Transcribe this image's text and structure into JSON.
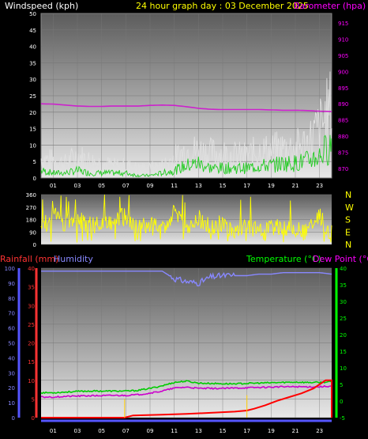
{
  "header": {
    "windspeed_label": "Windspeed (kph)",
    "title": "24 hour graph day : 03 December 2025",
    "barometer_label": "Barometer (hpa)"
  },
  "footer": {
    "rainfall_label": "Rainfall (mm)",
    "humidity_label": "Humidity",
    "temperature_label": "Temperature (°C)",
    "dewpoint_label": "Dew Point (°C)"
  },
  "colors": {
    "windspeed": "#ffffff",
    "gust": "#e0e0e0",
    "avg_wind": "#22cc22",
    "barometer": "#cc22cc",
    "direction": "#ffff00",
    "rainfall": "#ff0000",
    "humidity": "#8888ff",
    "temperature": "#00cc00",
    "dewpoint": "#cc00cc",
    "axis_blue": "#5555ff",
    "axis_green": "#00ff00",
    "header_yellow": "#ffff00",
    "header_magenta": "#ff00ff"
  },
  "chart_data": [
    {
      "type": "line",
      "name": "wind-barometer",
      "x_ticks": [
        "01",
        "03",
        "05",
        "07",
        "09",
        "11",
        "13",
        "15",
        "17",
        "19",
        "21",
        "23"
      ],
      "y_left_ticks": [
        "0",
        "5",
        "10",
        "15",
        "20",
        "25",
        "30",
        "35",
        "40",
        "45",
        "50"
      ],
      "y_left_lim": [
        0,
        50
      ],
      "y_right_ticks": [
        "870",
        "875",
        "880",
        "885",
        "890",
        "895",
        "900",
        "905",
        "910",
        "915"
      ],
      "y_right_lim": [
        867,
        918
      ],
      "series": [
        {
          "key": "wind",
          "x": [
            0,
            1,
            2,
            3,
            4,
            5,
            6,
            7,
            8,
            9,
            10,
            11,
            12,
            13,
            14,
            15,
            16,
            17,
            18,
            19,
            20,
            21,
            22,
            23,
            24
          ],
          "y": [
            3,
            2,
            2,
            3,
            2,
            2,
            2,
            2,
            1,
            1,
            2,
            3,
            5,
            6,
            4,
            4,
            4,
            4,
            5,
            5,
            6,
            6,
            7,
            9,
            14
          ]
        },
        {
          "key": "gust",
          "x": [
            0,
            1,
            2,
            3,
            4,
            5,
            6,
            7,
            8,
            9,
            10,
            11,
            12,
            13,
            14,
            15,
            16,
            17,
            18,
            19,
            20,
            21,
            22,
            23,
            24
          ],
          "y": [
            8,
            7,
            6,
            9,
            7,
            6,
            5,
            5,
            4,
            4,
            5,
            8,
            11,
            11,
            10,
            10,
            9,
            9,
            11,
            11,
            12,
            12,
            14,
            20,
            28
          ]
        },
        {
          "key": "barometer",
          "x": [
            0,
            1,
            2,
            3,
            4,
            5,
            6,
            7,
            8,
            9,
            10,
            11,
            12,
            13,
            14,
            15,
            16,
            17,
            18,
            19,
            20,
            21,
            22,
            23,
            24
          ],
          "y": [
            890.0,
            889.9,
            889.6,
            889.3,
            889.2,
            889.2,
            889.3,
            889.3,
            889.3,
            889.5,
            889.6,
            889.5,
            889.1,
            888.6,
            888.3,
            888.2,
            888.2,
            888.2,
            888.2,
            888.1,
            888.0,
            888.0,
            887.9,
            887.7,
            887.6
          ]
        }
      ]
    },
    {
      "type": "line",
      "name": "wind-direction",
      "x_ticks": [],
      "y_left_ticks": [
        "0",
        "90",
        "180",
        "270",
        "360"
      ],
      "y_left_lim": [
        0,
        360
      ],
      "y_right_ticks": [
        "N",
        "W",
        "S",
        "E",
        "N"
      ],
      "series": [
        {
          "key": "direction",
          "x": [
            0,
            1,
            2,
            3,
            4,
            5,
            6,
            7,
            8,
            9,
            10,
            11,
            12,
            13,
            14,
            15,
            16,
            17,
            18,
            19,
            20,
            21,
            22,
            23,
            24
          ],
          "y": [
            100,
            220,
            150,
            200,
            130,
            180,
            160,
            210,
            120,
            140,
            90,
            260,
            110,
            190,
            120,
            150,
            100,
            130,
            90,
            110,
            120,
            100,
            90,
            200,
            80
          ]
        }
      ]
    },
    {
      "type": "line",
      "name": "rain-humidity-temp",
      "x_ticks": [
        "01",
        "03",
        "05",
        "07",
        "09",
        "11",
        "13",
        "15",
        "17",
        "19",
        "21",
        "23"
      ],
      "y_left_ticks": [
        "0",
        "5",
        "10",
        "15",
        "20",
        "25",
        "30",
        "35",
        "40"
      ],
      "y_left_lim": [
        0,
        40
      ],
      "y_hum_ticks": [
        "0",
        "10",
        "20",
        "30",
        "40",
        "50",
        "60",
        "70",
        "80",
        "90",
        "100"
      ],
      "y_right_ticks": [
        "-5",
        "0",
        "5",
        "10",
        "15",
        "20",
        "25",
        "30",
        "35",
        "40"
      ],
      "y_right_lim": [
        -5,
        40
      ],
      "series": [
        {
          "key": "humidity",
          "x": [
            0,
            1,
            2,
            3,
            4,
            5,
            6,
            7,
            8,
            9,
            10,
            11,
            12,
            13,
            14,
            15,
            16,
            17,
            18,
            19,
            20,
            21,
            22,
            23,
            24
          ],
          "y": [
            98,
            98,
            98,
            98,
            98,
            98,
            98,
            98,
            98,
            98,
            98,
            93,
            91,
            90,
            94,
            95,
            95,
            95,
            96,
            96,
            97,
            97,
            97,
            97,
            96
          ]
        },
        {
          "key": "temperature",
          "x": [
            0,
            1,
            2,
            3,
            4,
            5,
            6,
            7,
            8,
            9,
            10,
            11,
            12,
            13,
            14,
            15,
            16,
            17,
            18,
            19,
            20,
            21,
            22,
            23,
            24
          ],
          "y": [
            2.5,
            2.5,
            2.7,
            2.9,
            3.0,
            3.0,
            3.0,
            3.0,
            3.2,
            3.8,
            4.6,
            5.6,
            6.0,
            5.4,
            5.3,
            5.2,
            5.2,
            5.3,
            5.4,
            5.5,
            5.6,
            5.7,
            5.6,
            5.6,
            5.8
          ]
        },
        {
          "key": "dewpoint",
          "x": [
            0,
            1,
            2,
            3,
            4,
            5,
            6,
            7,
            8,
            9,
            10,
            11,
            12,
            13,
            14,
            15,
            16,
            17,
            18,
            19,
            20,
            21,
            22,
            23,
            24
          ],
          "y": [
            1.2,
            1.2,
            1.4,
            1.5,
            1.6,
            1.6,
            1.7,
            1.7,
            1.9,
            2.4,
            3.0,
            3.9,
            4.2,
            3.8,
            3.8,
            3.8,
            3.9,
            4.0,
            4.1,
            4.2,
            4.3,
            4.3,
            4.3,
            4.3,
            4.5
          ]
        },
        {
          "key": "rainfall",
          "x": [
            0,
            6.9,
            7.6,
            10,
            12,
            14,
            16,
            17.0,
            17.6,
            18.5,
            19.5,
            20.5,
            21.5,
            22.5,
            23.5,
            24
          ],
          "y": [
            0,
            0,
            0.6,
            0.8,
            1.0,
            1.3,
            1.6,
            1.9,
            2.4,
            3.3,
            4.5,
            5.5,
            6.5,
            7.8,
            10,
            10
          ]
        },
        {
          "key": "rain_rate_marks",
          "x": [
            6.9,
            17.0
          ],
          "y": [
            5,
            6
          ]
        }
      ]
    }
  ]
}
